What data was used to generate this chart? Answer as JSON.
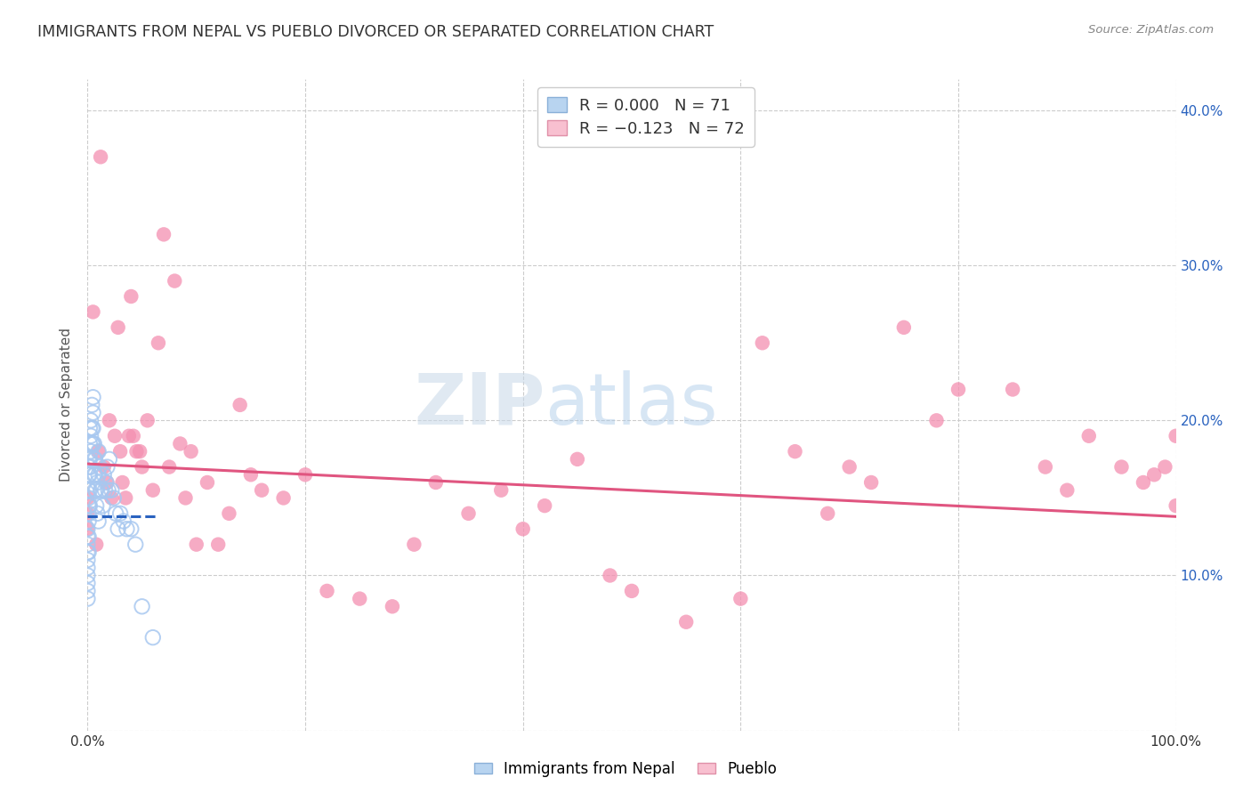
{
  "title": "IMMIGRANTS FROM NEPAL VS PUEBLO DIVORCED OR SEPARATED CORRELATION CHART",
  "source": "Source: ZipAtlas.com",
  "ylabel": "Divorced or Separated",
  "xlim": [
    0,
    1.0
  ],
  "ylim": [
    0,
    0.42
  ],
  "xticks": [
    0.0,
    0.2,
    0.4,
    0.6,
    0.8,
    1.0
  ],
  "xticklabels": [
    "0.0%",
    "",
    "",
    "",
    "",
    "100.0%"
  ],
  "yticks": [
    0.0,
    0.1,
    0.2,
    0.3,
    0.4
  ],
  "yticklabels_right": [
    "",
    "10.0%",
    "20.0%",
    "30.0%",
    "40.0%"
  ],
  "nepal_color": "#a8c8f0",
  "pueblo_color": "#f48fb1",
  "nepal_line_color": "#2962bf",
  "pueblo_line_color": "#e05580",
  "grid_color": "#cccccc",
  "background_color": "#ffffff",
  "nepal_x": [
    0.0,
    0.0,
    0.0,
    0.0,
    0.0,
    0.0,
    0.0,
    0.0,
    0.0,
    0.0,
    0.001,
    0.001,
    0.001,
    0.001,
    0.001,
    0.001,
    0.001,
    0.001,
    0.001,
    0.001,
    0.002,
    0.002,
    0.002,
    0.002,
    0.002,
    0.002,
    0.003,
    0.003,
    0.003,
    0.003,
    0.004,
    0.004,
    0.004,
    0.005,
    0.005,
    0.005,
    0.005,
    0.006,
    0.006,
    0.006,
    0.007,
    0.007,
    0.007,
    0.008,
    0.008,
    0.009,
    0.009,
    0.01,
    0.01,
    0.01,
    0.011,
    0.012,
    0.013,
    0.014,
    0.015,
    0.016,
    0.017,
    0.018,
    0.019,
    0.02,
    0.022,
    0.024,
    0.026,
    0.028,
    0.03,
    0.033,
    0.036,
    0.04,
    0.044,
    0.05,
    0.06
  ],
  "nepal_y": [
    0.13,
    0.125,
    0.12,
    0.115,
    0.11,
    0.105,
    0.1,
    0.095,
    0.09,
    0.085,
    0.175,
    0.17,
    0.165,
    0.155,
    0.15,
    0.145,
    0.14,
    0.135,
    0.125,
    0.115,
    0.195,
    0.185,
    0.175,
    0.165,
    0.155,
    0.145,
    0.2,
    0.19,
    0.18,
    0.17,
    0.21,
    0.195,
    0.185,
    0.215,
    0.205,
    0.195,
    0.185,
    0.185,
    0.175,
    0.165,
    0.175,
    0.165,
    0.155,
    0.155,
    0.145,
    0.16,
    0.14,
    0.18,
    0.165,
    0.135,
    0.17,
    0.155,
    0.155,
    0.145,
    0.165,
    0.155,
    0.16,
    0.17,
    0.155,
    0.175,
    0.155,
    0.15,
    0.14,
    0.13,
    0.14,
    0.135,
    0.13,
    0.13,
    0.12,
    0.08,
    0.06
  ],
  "pueblo_x": [
    0.0,
    0.0,
    0.0,
    0.005,
    0.008,
    0.01,
    0.012,
    0.015,
    0.018,
    0.02,
    0.022,
    0.025,
    0.028,
    0.03,
    0.032,
    0.035,
    0.038,
    0.04,
    0.042,
    0.045,
    0.048,
    0.05,
    0.055,
    0.06,
    0.065,
    0.07,
    0.075,
    0.08,
    0.085,
    0.09,
    0.095,
    0.1,
    0.11,
    0.12,
    0.13,
    0.14,
    0.15,
    0.16,
    0.18,
    0.2,
    0.22,
    0.25,
    0.28,
    0.3,
    0.32,
    0.35,
    0.38,
    0.4,
    0.42,
    0.45,
    0.48,
    0.5,
    0.55,
    0.6,
    0.62,
    0.65,
    0.68,
    0.7,
    0.72,
    0.75,
    0.78,
    0.8,
    0.85,
    0.88,
    0.9,
    0.92,
    0.95,
    0.97,
    0.98,
    0.99,
    1.0,
    1.0
  ],
  "pueblo_y": [
    0.15,
    0.14,
    0.13,
    0.27,
    0.12,
    0.18,
    0.37,
    0.17,
    0.16,
    0.2,
    0.15,
    0.19,
    0.26,
    0.18,
    0.16,
    0.15,
    0.19,
    0.28,
    0.19,
    0.18,
    0.18,
    0.17,
    0.2,
    0.155,
    0.25,
    0.32,
    0.17,
    0.29,
    0.185,
    0.15,
    0.18,
    0.12,
    0.16,
    0.12,
    0.14,
    0.21,
    0.165,
    0.155,
    0.15,
    0.165,
    0.09,
    0.085,
    0.08,
    0.12,
    0.16,
    0.14,
    0.155,
    0.13,
    0.145,
    0.175,
    0.1,
    0.09,
    0.07,
    0.085,
    0.25,
    0.18,
    0.14,
    0.17,
    0.16,
    0.26,
    0.2,
    0.22,
    0.22,
    0.17,
    0.155,
    0.19,
    0.17,
    0.16,
    0.165,
    0.17,
    0.145,
    0.19
  ],
  "nepal_trend_x": [
    0.0,
    0.065
  ],
  "nepal_trend_y": [
    0.138,
    0.138
  ],
  "pueblo_trend_x": [
    0.0,
    1.0
  ],
  "pueblo_trend_y": [
    0.172,
    0.138
  ]
}
